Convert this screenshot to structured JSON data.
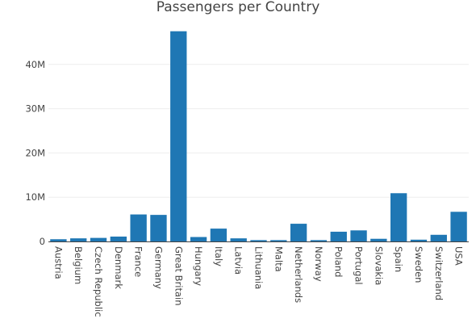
{
  "chart_data": {
    "type": "bar",
    "title": "Passengers per Country",
    "xlabel": "",
    "ylabel": "",
    "categories": [
      "Austria",
      "Belgium",
      "Czech Republic",
      "Denmark",
      "France",
      "Germany",
      "Great Britain",
      "Hungary",
      "Italy",
      "Latvia",
      "Lithuania",
      "Malta",
      "Netherlands",
      "Norway",
      "Poland",
      "Portugal",
      "Slovakia",
      "Spain",
      "Sweden",
      "Switzerland",
      "USA"
    ],
    "values": [
      500000,
      700000,
      800000,
      1100000,
      6100000,
      6000000,
      47500000,
      1000000,
      2900000,
      700000,
      300000,
      300000,
      4000000,
      300000,
      2200000,
      2500000,
      600000,
      10900000,
      400000,
      1500000,
      6700000
    ],
    "ylim": [
      0,
      50000000
    ],
    "yticks": [
      0,
      10000000,
      20000000,
      30000000,
      40000000
    ],
    "ytick_labels": [
      "0",
      "10M",
      "20M",
      "30M",
      "40M"
    ],
    "grid": true,
    "bar_color": "#1f77b4",
    "grid_color": "#eeeeee",
    "axis_color": "#444444"
  }
}
